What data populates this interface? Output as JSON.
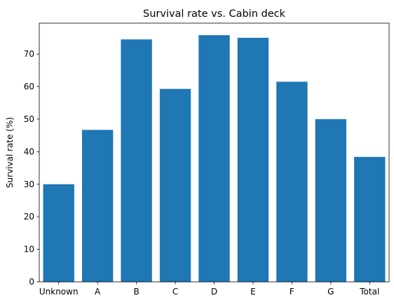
{
  "chart_data": {
    "type": "bar",
    "title": "Survival rate vs. Cabin deck",
    "xlabel": "",
    "ylabel": "Survival rate (%)",
    "categories": [
      "Unknown",
      "A",
      "B",
      "C",
      "D",
      "E",
      "F",
      "G",
      "Total"
    ],
    "values": [
      30.0,
      46.7,
      74.5,
      59.3,
      75.8,
      75.0,
      61.5,
      50.0,
      38.4
    ],
    "ylim": [
      0,
      79.5
    ],
    "yticks": [
      0,
      10,
      20,
      30,
      40,
      50,
      60,
      70
    ],
    "grid": false,
    "bar_color": "#1f77b4"
  }
}
